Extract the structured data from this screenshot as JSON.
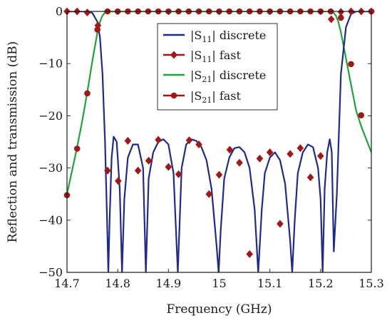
{
  "chart_data": {
    "type": "line",
    "xlabel": "Frequency (GHz)",
    "ylabel": "Reflection and transmission (dB)",
    "xlim": [
      14.7,
      15.3
    ],
    "ylim": [
      -50,
      0
    ],
    "xticks": [
      14.7,
      14.8,
      14.9,
      15,
      15.1,
      15.2,
      15.3
    ],
    "xtick_labels": [
      "14.7",
      "14.8",
      "14.9",
      "15",
      "15.1",
      "15.2",
      "15.3"
    ],
    "yticks": [
      0,
      -10,
      -20,
      -30,
      -40,
      -50
    ],
    "ytick_labels": [
      "0",
      "−10",
      "−20",
      "−30",
      "−40",
      "−50"
    ],
    "grid": false,
    "legend_position": "top-center",
    "legend": {
      "s11_discrete": {
        "base": "|S",
        "sub": "11",
        "tail": "| discrete"
      },
      "s11_fast": {
        "base": "|S",
        "sub": "11",
        "tail": "| fast"
      },
      "s21_discrete": {
        "base": "|S",
        "sub": "21",
        "tail": "| discrete"
      },
      "s21_fast": {
        "base": "|S",
        "sub": "21",
        "tail": "| fast"
      }
    },
    "colors": {
      "s11_discrete": "#1f2a8c",
      "s21_discrete": "#1fa33a",
      "fast_markers": "#a01818"
    },
    "series": [
      {
        "key": "s11_discrete",
        "style": "line",
        "x": [
          14.7,
          14.74,
          14.75,
          14.76,
          14.765,
          14.77,
          14.775,
          14.779,
          14.7815,
          14.784,
          14.788,
          14.792,
          14.798,
          14.804,
          14.8085,
          14.813,
          14.82,
          14.83,
          14.84,
          14.85,
          14.8555,
          14.861,
          14.87,
          14.88,
          14.89,
          14.9,
          14.91,
          14.9185,
          14.926,
          14.935,
          14.945,
          14.955,
          14.965,
          14.975,
          14.985,
          14.995,
          14.999,
          15.003,
          15.01,
          15.02,
          15.03,
          15.04,
          15.05,
          15.06,
          15.07,
          15.077,
          15.084,
          15.09,
          15.1,
          15.11,
          15.12,
          15.13,
          15.14,
          15.144,
          15.149,
          15.155,
          15.165,
          15.175,
          15.185,
          15.195,
          15.2,
          15.204,
          15.208,
          15.213,
          15.218,
          15.222,
          15.226,
          15.232,
          15.24,
          15.25,
          15.26,
          15.27,
          15.3
        ],
        "y": [
          0,
          0,
          -0.3,
          -2,
          -5,
          -12,
          -25,
          -40,
          -50,
          -40,
          -28,
          -24,
          -25,
          -34,
          -50,
          -36,
          -28,
          -25.5,
          -25.5,
          -30,
          -50,
          -32,
          -27,
          -25,
          -24.5,
          -25.5,
          -31,
          -50,
          -30,
          -25.5,
          -24.5,
          -24.8,
          -26,
          -28.5,
          -34,
          -45,
          -50,
          -42,
          -32,
          -28,
          -26.2,
          -26,
          -27,
          -30,
          -38,
          -50,
          -38,
          -31,
          -28,
          -27,
          -28.5,
          -33,
          -44,
          -50,
          -40,
          -31,
          -27,
          -25.5,
          -26,
          -30,
          -36,
          -50,
          -34,
          -27,
          -24.5,
          -27,
          -46,
          -35,
          -12,
          -3,
          -0.5,
          0,
          0
        ]
      },
      {
        "key": "s11_fast",
        "style": "markers",
        "marker": "diamond",
        "x": [
          14.7,
          14.72,
          14.74,
          14.761,
          14.78,
          14.801,
          14.82,
          14.84,
          14.861,
          14.88,
          14.9,
          14.92,
          14.941,
          14.96,
          14.98,
          15,
          15.021,
          15.04,
          15.06,
          15.08,
          15.1,
          15.12,
          15.14,
          15.16,
          15.18,
          15.2,
          15.221,
          15.24,
          15.26,
          15.28,
          15.3
        ],
        "y": [
          0,
          0,
          -0.2,
          -2.7,
          -30.5,
          -32.5,
          -24.8,
          -30.5,
          -28.6,
          -24.6,
          -29.8,
          -31.2,
          -24.7,
          -25.5,
          -35,
          -31.3,
          -26.5,
          -29,
          -46.5,
          -28.2,
          -27,
          -40.7,
          -27.3,
          -26.2,
          -31.8,
          -27.7,
          -1.5,
          -0.1,
          0,
          0,
          0
        ]
      },
      {
        "key": "s21_discrete",
        "style": "line",
        "x": [
          14.7,
          14.71,
          14.72,
          14.73,
          14.74,
          14.75,
          14.76,
          14.765,
          14.77,
          14.775,
          14.78,
          14.79,
          15.21,
          15.22,
          15.225,
          15.23,
          15.235,
          15.24,
          15.25,
          15.26,
          15.27,
          15.28,
          15.29,
          15.3
        ],
        "y": [
          -35,
          -30.5,
          -26,
          -21,
          -15.5,
          -9.5,
          -4,
          -2,
          -0.8,
          -0.2,
          0,
          0,
          0,
          0,
          -0.2,
          -0.8,
          -2,
          -4,
          -9,
          -14,
          -19,
          -22,
          -24.5,
          -27
        ]
      },
      {
        "key": "s21_fast",
        "style": "markers",
        "marker": "circle",
        "x": [
          14.7,
          14.72,
          14.74,
          14.76,
          14.78,
          14.8,
          14.82,
          14.84,
          14.86,
          14.88,
          14.9,
          14.92,
          14.94,
          14.96,
          14.98,
          15,
          15.02,
          15.04,
          15.06,
          15.08,
          15.1,
          15.12,
          15.14,
          15.16,
          15.18,
          15.2,
          15.22,
          15.24,
          15.26,
          15.28,
          15.3
        ],
        "y": [
          -35.2,
          -26.3,
          -15.7,
          -3.5,
          0,
          0,
          0,
          0,
          0,
          0,
          0,
          0,
          0,
          0,
          0,
          0,
          0,
          0,
          0,
          0,
          0,
          0,
          0,
          0,
          0,
          0,
          0,
          -1.2,
          -10.1,
          -19.9,
          0
        ]
      }
    ]
  }
}
